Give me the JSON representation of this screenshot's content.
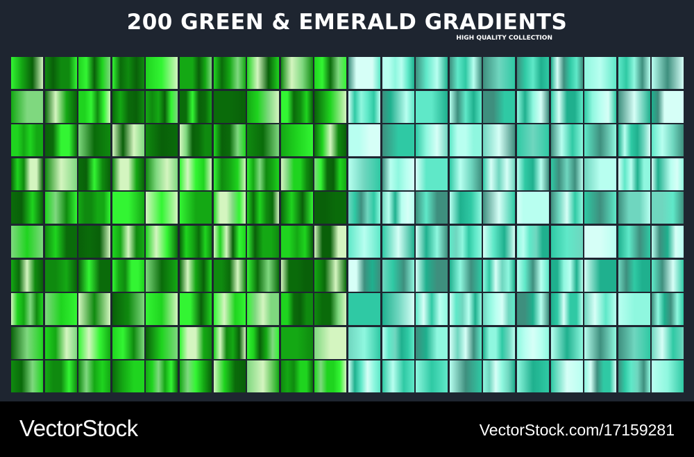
{
  "header": {
    "title": "200 GREEN & EMERALD GRADIENTS",
    "subtitle": "HIGH QUALITY COLLECTION"
  },
  "footer": {
    "brand": "VectorStock",
    "url": "VectorStock.com/17159281"
  }
}
